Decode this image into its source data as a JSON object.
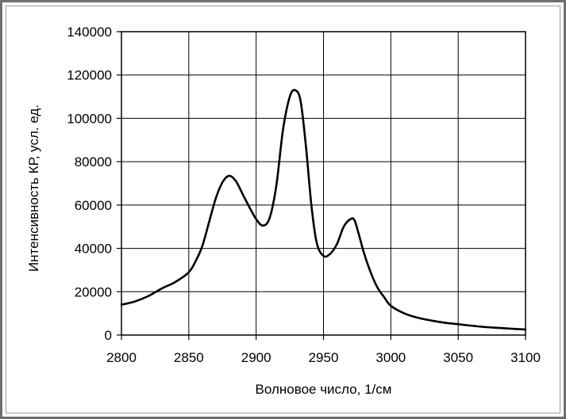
{
  "chart_data": {
    "type": "line",
    "title": "",
    "xlabel": "Волновое число, 1/см",
    "ylabel": "Интенсивность КР, усл. ед.",
    "xlim": [
      2800,
      3100
    ],
    "ylim": [
      0,
      140000
    ],
    "x_ticks": [
      "2800",
      "2850",
      "2900",
      "2950",
      "3000",
      "3050",
      "3100"
    ],
    "y_ticks": [
      "0",
      "20000",
      "40000",
      "60000",
      "80000",
      "100000",
      "120000",
      "140000"
    ],
    "grid": true,
    "legend": "none",
    "line_color": "#000000",
    "series": [
      {
        "x": [
          2800,
          2810,
          2820,
          2830,
          2840,
          2850,
          2855,
          2860,
          2865,
          2870,
          2875,
          2880,
          2885,
          2890,
          2895,
          2900,
          2905,
          2910,
          2915,
          2920,
          2925,
          2929,
          2933,
          2937,
          2941,
          2945,
          2950,
          2955,
          2960,
          2965,
          2970,
          2973,
          2976,
          2980,
          2985,
          2990,
          2995,
          3000,
          3010,
          3020,
          3030,
          3040,
          3050,
          3060,
          3070,
          3080,
          3090,
          3100
        ],
        "y": [
          14000,
          15500,
          18000,
          21500,
          24500,
          29000,
          34000,
          41000,
          52000,
          63000,
          70500,
          73500,
          71000,
          65000,
          59000,
          53500,
          50500,
          54000,
          69000,
          95000,
          110000,
          113000,
          108000,
          87000,
          60000,
          42500,
          36500,
          37500,
          42000,
          50000,
          53500,
          53000,
          47000,
          38000,
          29000,
          22000,
          17500,
          13500,
          10000,
          8000,
          6700,
          5700,
          5000,
          4300,
          3700,
          3300,
          2900,
          2600
        ]
      }
    ]
  }
}
